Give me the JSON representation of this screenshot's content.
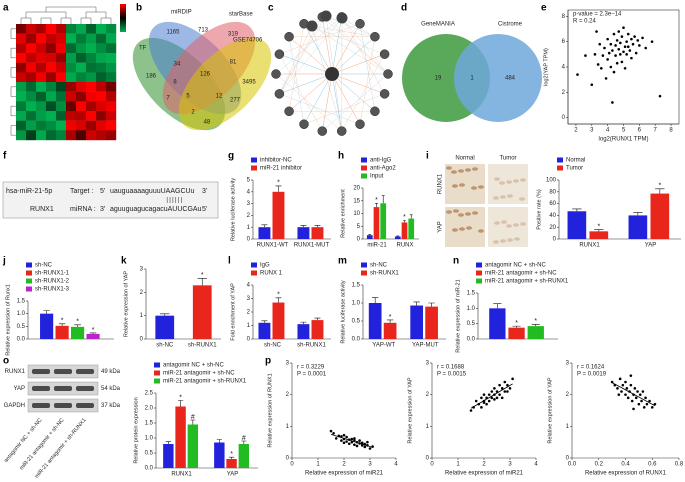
{
  "chart_data": [
    {
      "panel": "a",
      "type": "heatmap",
      "colors": [
        "#00b050",
        "#000000",
        "#ff0000"
      ],
      "zlim": [
        -2,
        2
      ],
      "values": [
        [
          0.9,
          1.6,
          1.3,
          2,
          1.4,
          -1.5,
          -1.9,
          -1.1,
          -2,
          -1.6
        ],
        [
          1.8,
          1.2,
          2,
          1.5,
          1.7,
          -2,
          -1.4,
          -1.8,
          -1.2,
          -1.9
        ],
        [
          1.4,
          2,
          1.6,
          1.1,
          1.9,
          -1.2,
          -1.7,
          -2,
          -1.6,
          -1.3
        ],
        [
          2,
          1.5,
          1.8,
          1.7,
          1.2,
          -1.8,
          -1.1,
          -1.5,
          -1.9,
          -2
        ],
        [
          1.1,
          1.9,
          1.4,
          2,
          1.6,
          -1.6,
          -2,
          -1.3,
          -1.4,
          -1.7
        ],
        [
          1.6,
          1.3,
          1.9,
          1.2,
          2,
          -1.9,
          -1.5,
          -1.7,
          -1.1,
          -1.4
        ],
        [
          -1.8,
          -1.2,
          -2,
          -1.5,
          -0.8,
          1.2,
          1.8,
          2,
          1.5,
          0.9
        ],
        [
          -2,
          -1.6,
          -1.1,
          -1.9,
          -1.3,
          1.6,
          1.1,
          1.9,
          2,
          1.4
        ],
        [
          -1.4,
          -2,
          -1.7,
          -0.9,
          -1.6,
          0.8,
          2,
          1.3,
          1.7,
          1.9
        ],
        [
          -1.9,
          -1.3,
          -1.8,
          -2,
          -1.1,
          1.5,
          1.4,
          2,
          1.1,
          1.6
        ],
        [
          -1.1,
          -1.8,
          -1.4,
          -1.6,
          -2,
          1.9,
          1.7,
          1.2,
          1.8,
          2
        ],
        [
          -1.7,
          -0.7,
          -1.9,
          -1.2,
          -1.5,
          1.3,
          0.6,
          1.6,
          1.4,
          1.2
        ]
      ]
    },
    {
      "panel": "b",
      "type": "venn4",
      "sets": [
        "TF",
        "miRDIP",
        "starBase",
        "GSE74706"
      ],
      "set_colors": [
        "#2f8f2f",
        "#4a7fd0",
        "#e0606a",
        "#d8c400"
      ],
      "regions": [
        1165,
        713,
        319,
        186,
        34,
        81,
        8,
        126,
        3495,
        7,
        5,
        12,
        277,
        2,
        48
      ]
    },
    {
      "panel": "c",
      "type": "network"
    },
    {
      "panel": "d",
      "type": "venn2",
      "sets": [
        "GeneMANIA",
        "Cistrome"
      ],
      "set_colors": [
        "#3d9a3d",
        "#6fa8dc"
      ],
      "regions": [
        19,
        1,
        484
      ]
    },
    {
      "panel": "e",
      "type": "scatter",
      "frame": true,
      "annotations": [
        "p-value = 2.3e−14",
        "R = 0.24"
      ],
      "x_label": "log2(RUNX1 TPM)",
      "y_label": "log2(YAP TPM)",
      "x": [
        2.1,
        2.6,
        3.0,
        3.2,
        3.4,
        3.5,
        3.6,
        3.7,
        3.8,
        3.9,
        4.0,
        4.0,
        4.1,
        4.2,
        4.2,
        4.3,
        4.4,
        4.4,
        4.5,
        4.5,
        4.6,
        4.6,
        4.7,
        4.7,
        4.8,
        4.8,
        4.9,
        4.9,
        5.0,
        5.0,
        5.1,
        5.1,
        5.2,
        5.2,
        5.3,
        5.3,
        5.4,
        5.5,
        5.5,
        5.6,
        5.7,
        5.8,
        5.9,
        6.0,
        6.2,
        6.4,
        6.8,
        7.3,
        4.3,
        3.3
      ],
      "y": [
        3.4,
        4.9,
        2.6,
        5.0,
        4.2,
        5.8,
        3.9,
        4.9,
        5.5,
        3.1,
        4.6,
        6.2,
        5.1,
        4.0,
        5.8,
        5.3,
        6.6,
        3.6,
        4.9,
        5.7,
        6.1,
        4.3,
        5.4,
        6.8,
        5.0,
        5.9,
        4.4,
        6.4,
        5.2,
        7.1,
        5.6,
        3.9,
        6.0,
        5.0,
        5.6,
        6.6,
        5.3,
        6.2,
        4.7,
        5.8,
        6.4,
        5.1,
        6.1,
        5.7,
        6.3,
        5.5,
        6.0,
        1.7,
        1.2,
        6.8
      ],
      "xlim": [
        1.5,
        8.5
      ],
      "xticks": [
        2,
        3,
        4,
        5,
        6,
        7,
        8
      ],
      "ylim": [
        -0.5,
        8.5
      ],
      "yticks": [
        0,
        2,
        4,
        6,
        8
      ]
    },
    {
      "panel": "f",
      "type": "alignment",
      "mirna": "hsa-miR-21-5p",
      "gene": "RUNX1",
      "pairs": "||||||",
      "rows": [
        {
          "label": "Target :",
          "start": "5'",
          "seq": "uauguaaaaguuuUAAGCUu",
          "end": "3'",
          "color": "#2a4fd6"
        },
        {
          "label": "miRNA :",
          "start": "3'",
          "seq": "aguuguagucagacuAUUCGAu",
          "end": "5'",
          "color": "#e0442a"
        }
      ]
    },
    {
      "panel": "g",
      "type": "bar",
      "y_label": "Relative luciferase activity",
      "categories": [
        "RUNX1-WT",
        "RUNX1-MUT"
      ],
      "series": [
        {
          "name": "inhibitor-NC",
          "color": "#2222dd",
          "values": [
            1.0,
            1.0
          ],
          "errors": [
            0.2,
            0.15
          ],
          "sig": [
            null,
            null
          ]
        },
        {
          "name": "miR-21 inhibitor",
          "color": "#e8261c",
          "values": [
            4.0,
            1.0
          ],
          "errors": [
            0.5,
            0.15
          ],
          "sig": [
            "*",
            null
          ]
        }
      ],
      "ylim": [
        0,
        5
      ],
      "yticks": [
        0,
        1,
        2,
        3,
        4,
        5
      ]
    },
    {
      "panel": "h",
      "type": "bar",
      "y_label": "Relative enrichment",
      "categories": [
        "miR-21",
        "RUNX"
      ],
      "series": [
        {
          "name": "anti-IgG",
          "color": "#2222dd",
          "values": [
            1.5,
            1.0
          ],
          "errors": [
            0.3,
            0.2
          ],
          "sig": [
            null,
            null
          ]
        },
        {
          "name": "anti-Ago2",
          "color": "#e8261c",
          "values": [
            12.5,
            6.5
          ],
          "errors": [
            1.5,
            0.8
          ],
          "sig": [
            "*",
            "*"
          ]
        },
        {
          "name": "Input",
          "color": "#22bb22",
          "values": [
            14,
            8
          ],
          "errors": [
            3.0,
            1.5
          ],
          "sig": [
            null,
            null
          ]
        }
      ],
      "ylim": [
        0,
        20
      ],
      "yticks": [
        0,
        5,
        10,
        15,
        20
      ]
    },
    {
      "panel": "i",
      "type": "bar",
      "images": {
        "columns": [
          "Normal",
          "Tumor"
        ],
        "rows": [
          "RUNX1",
          "YAP"
        ]
      },
      "y_label": "Positive rate (%)",
      "categories": [
        "RUNX1",
        "YAP"
      ],
      "series": [
        {
          "name": "Normal",
          "color": "#2222dd",
          "values": [
            47,
            40
          ],
          "errors": [
            4,
            5
          ],
          "sig": [
            null,
            null
          ]
        },
        {
          "name": "Tumor",
          "color": "#e8261c",
          "values": [
            13,
            77
          ],
          "errors": [
            3,
            8
          ],
          "sig": [
            "*",
            "*"
          ]
        }
      ],
      "ylim": [
        0,
        100
      ],
      "yticks": [
        0,
        20,
        40,
        60,
        80,
        100
      ]
    },
    {
      "panel": "j",
      "type": "bar",
      "y_label": "Relative expression of Runx1",
      "categories": [
        null
      ],
      "series": [
        {
          "name": "sh-NC",
          "color": "#2222dd",
          "values": [
            1.0
          ],
          "errors": [
            0.12
          ],
          "sig": [
            null
          ]
        },
        {
          "name": "sh-RUNX1-1",
          "color": "#e8261c",
          "values": [
            0.52
          ],
          "errors": [
            0.08
          ],
          "sig": [
            "*"
          ]
        },
        {
          "name": "sh-RUNX1-2",
          "color": "#22bb22",
          "values": [
            0.48
          ],
          "errors": [
            0.08
          ],
          "sig": [
            "*"
          ]
        },
        {
          "name": "sh-RUNX1-3",
          "color": "#bb22cc",
          "values": [
            0.2
          ],
          "errors": [
            0.04
          ],
          "sig": [
            "*"
          ]
        }
      ],
      "ylim": [
        0,
        1.5
      ],
      "yticks": [
        {
          "value": 0,
          "label": "0.0"
        },
        0.5,
        {
          "value": 1,
          "label": "1.0"
        },
        1.5
      ]
    },
    {
      "panel": "k",
      "type": "bar",
      "y_label": "Relative expression of YAP",
      "categories": [
        "sh-NC",
        "sh-RUNX1"
      ],
      "values": [
        1.0,
        2.3
      ],
      "errors": [
        0.08,
        0.3
      ],
      "sig": [
        null,
        "*"
      ],
      "colors": [
        "#2222dd",
        "#e8261c"
      ],
      "ylim": [
        0,
        3
      ],
      "yticks": [
        0,
        1,
        2,
        3
      ]
    },
    {
      "panel": "l",
      "type": "bar",
      "y_label": "Fold enrichment of YAP",
      "categories": [
        "sh-NC",
        "sh-RUNX1"
      ],
      "series": [
        {
          "name": "IgG",
          "color": "#2222dd",
          "values": [
            1.2,
            1.1
          ],
          "errors": [
            0.15,
            0.15
          ],
          "sig": [
            null,
            null
          ]
        },
        {
          "name": "RUNX 1",
          "color": "#e8261c",
          "values": [
            2.7,
            1.4
          ],
          "errors": [
            0.35,
            0.15
          ],
          "sig": [
            "*",
            null
          ]
        }
      ],
      "ylim": [
        0,
        4
      ],
      "yticks": [
        0,
        1,
        2,
        3,
        4
      ]
    },
    {
      "panel": "m",
      "type": "bar",
      "y_label": "Relative luciferase activity",
      "categories": [
        "YAP-WT",
        "YAP-MUT"
      ],
      "series": [
        {
          "name": "sh-NC",
          "color": "#2222dd",
          "values": [
            1.0,
            0.93
          ],
          "errors": [
            0.15,
            0.1
          ],
          "sig": [
            null,
            null
          ]
        },
        {
          "name": "sh-RUNX1",
          "color": "#e8261c",
          "values": [
            0.45,
            0.9
          ],
          "errors": [
            0.08,
            0.1
          ],
          "sig": [
            "*",
            null
          ]
        }
      ],
      "ylim": [
        0,
        1.5
      ],
      "yticks": [
        {
          "value": 0,
          "label": "0.0"
        },
        0.5,
        {
          "value": 1,
          "label": "1.0"
        },
        1.5
      ]
    },
    {
      "panel": "n",
      "type": "bar",
      "y_label": "Relative expression of miR-21",
      "categories": [
        null
      ],
      "series": [
        {
          "name": "antagomir NC + sh-NC",
          "color": "#2222dd",
          "values": [
            1.0
          ],
          "errors": [
            0.15
          ],
          "sig": [
            null
          ]
        },
        {
          "name": "miR-21 antagomir + sh-NC",
          "color": "#e8261c",
          "values": [
            0.37
          ],
          "errors": [
            0.05
          ],
          "sig": [
            "*"
          ]
        },
        {
          "name": "miR-21 antagomir + sh-RUNX1",
          "color": "#22bb22",
          "values": [
            0.42
          ],
          "errors": [
            0.06
          ],
          "sig": [
            "*"
          ]
        }
      ],
      "ylim": [
        0,
        1.5
      ],
      "yticks": [
        {
          "value": 0,
          "label": "0.0"
        },
        0.5,
        {
          "value": 1,
          "label": "1.0"
        },
        1.5
      ]
    },
    {
      "panel": "o",
      "type": "bar",
      "blot": {
        "bands": [
          "RUNX1",
          "YAP",
          "GAPDH"
        ],
        "sizes": [
          "49 kDa",
          "54 kDa",
          "37 kDa"
        ],
        "lanes": [
          "antagomir NC + sh-NC",
          "miR-21 antagomir + sh-NC",
          "miR-21 antagomir + sh-RUNX1"
        ]
      },
      "y_label": "Relative protein expression",
      "categories": [
        "RUNX1",
        "YAP"
      ],
      "series": [
        {
          "name": "antagomir NC + sh-NC",
          "color": "#2222dd",
          "values": [
            0.8,
            0.85
          ],
          "errors": [
            0.08,
            0.1
          ],
          "sig": [
            null,
            null
          ]
        },
        {
          "name": "miR-21 antagomir + sh-NC",
          "color": "#e8261c",
          "values": [
            2.05,
            0.3
          ],
          "errors": [
            0.2,
            0.06
          ],
          "sig": [
            "*",
            "*"
          ]
        },
        {
          "name": "miR-21 antagomir + sh-RUNX1",
          "color": "#22bb22",
          "values": [
            1.45,
            0.8
          ],
          "errors": [
            0.15,
            0.1
          ],
          "sig": [
            "#",
            "#"
          ]
        }
      ],
      "ylim": [
        0,
        2.5
      ],
      "yticks": [
        {
          "value": 0,
          "label": "0.0"
        },
        0.5,
        {
          "value": 1,
          "label": "1.0"
        },
        1.5,
        {
          "value": 2,
          "label": "2.0"
        },
        2.5
      ]
    },
    {
      "panel": "p",
      "type": "scatter",
      "fit": true,
      "annotations": [
        "r = 0.3229",
        "P = 0.0001"
      ],
      "x_label": "Relative expression of miR21",
      "y_label": "Relative expression of RUNX1",
      "x": [
        1.6,
        1.7,
        1.8,
        1.9,
        1.9,
        2.0,
        2.0,
        2.1,
        2.1,
        2.2,
        2.2,
        2.3,
        2.3,
        2.4,
        2.4,
        2.5,
        2.5,
        2.6,
        2.6,
        2.7,
        2.7,
        2.8,
        2.8,
        2.9,
        3.0,
        3.1,
        1.5,
        2.0,
        2.4,
        2.9
      ],
      "y": [
        0.78,
        0.62,
        0.7,
        0.55,
        0.68,
        0.6,
        0.48,
        0.66,
        0.52,
        0.58,
        0.45,
        0.6,
        0.5,
        0.42,
        0.56,
        0.5,
        0.38,
        0.46,
        0.55,
        0.4,
        0.48,
        0.35,
        0.44,
        0.4,
        0.3,
        0.36,
        0.85,
        0.72,
        0.62,
        0.5
      ],
      "xlim": [
        0,
        4
      ],
      "xticks": [
        0,
        1,
        2,
        3,
        4
      ],
      "ylim": [
        0,
        3
      ],
      "yticks": [
        0,
        1,
        2,
        3
      ]
    },
    {
      "type": "scatter",
      "fit": true,
      "annotations": [
        "r = 0.1688",
        "P = 0.0015"
      ],
      "x_label": "Relative expression of miR21",
      "y_label": "Relative expression of YAP",
      "x": [
        1.6,
        1.7,
        1.8,
        1.9,
        1.9,
        2.0,
        2.0,
        2.1,
        2.1,
        2.2,
        2.2,
        2.3,
        2.3,
        2.4,
        2.4,
        2.5,
        2.5,
        2.6,
        2.6,
        2.7,
        2.7,
        2.8,
        2.8,
        2.9,
        3.0,
        3.1,
        1.5,
        2.0,
        2.4,
        2.9
      ],
      "y": [
        1.6,
        1.8,
        1.7,
        1.9,
        1.6,
        1.8,
        2.0,
        1.7,
        1.9,
        2.0,
        1.8,
        2.1,
        1.9,
        2.0,
        2.2,
        1.9,
        2.1,
        2.3,
        2.0,
        2.2,
        1.9,
        2.4,
        2.1,
        2.3,
        2.2,
        2.5,
        1.5,
        1.75,
        1.85,
        2.1
      ],
      "xlim": [
        0,
        4
      ],
      "xticks": [
        0,
        1,
        2,
        3,
        4
      ],
      "ylim": [
        0,
        3
      ],
      "yticks": [
        0,
        1,
        2,
        3
      ]
    },
    {
      "type": "scatter",
      "fit": true,
      "annotations": [
        "r = 0.1624",
        "P = 0.0019"
      ],
      "x_label": "Relative expression of RUNX1",
      "y_label": "Relative expression of YAP",
      "x": [
        0.3,
        0.32,
        0.34,
        0.36,
        0.37,
        0.38,
        0.4,
        0.4,
        0.41,
        0.42,
        0.43,
        0.44,
        0.45,
        0.46,
        0.47,
        0.48,
        0.49,
        0.5,
        0.51,
        0.52,
        0.53,
        0.54,
        0.55,
        0.56,
        0.58,
        0.6,
        0.62,
        0.44,
        0.46,
        0.35
      ],
      "y": [
        2.4,
        2.3,
        2.2,
        2.5,
        2.1,
        2.3,
        2.0,
        2.4,
        2.2,
        1.9,
        2.1,
        2.3,
        1.8,
        2.0,
        2.2,
        1.9,
        2.1,
        1.7,
        2.0,
        1.8,
        2.1,
        1.6,
        1.9,
        1.7,
        1.8,
        1.6,
        1.7,
        2.6,
        1.55,
        2.0
      ],
      "xlim": [
        0,
        0.8
      ],
      "xticks": [
        {
          "value": 0,
          "label": "0.0"
        },
        0.2,
        0.4,
        0.6,
        0.8
      ],
      "ylim": [
        0,
        3
      ],
      "yticks": [
        0,
        1,
        2,
        3
      ]
    }
  ]
}
